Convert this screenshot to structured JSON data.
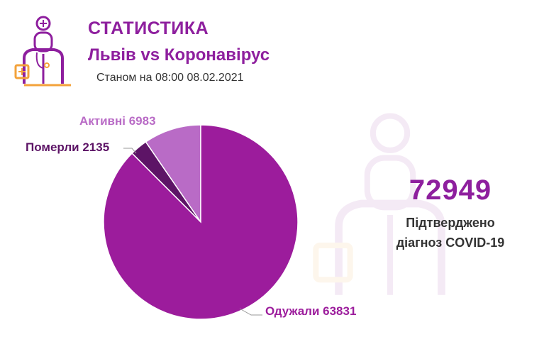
{
  "header": {
    "title": "СТАТИСТИКА",
    "subtitle": "Львів vs Коронавірус",
    "as_of": "Станом на 08:00 08.02.2021"
  },
  "logo_icon": "doctor-icon",
  "summary": {
    "total": "72949",
    "caption_line1": "Підтверджено",
    "caption_line2": "діагноз COVID-19"
  },
  "colors": {
    "brand": "#8e1f9e",
    "recovered": "#9c1c9c",
    "died": "#5d1466",
    "active": "#b96bc6",
    "accent_orange": "#f3a23a"
  },
  "chart_data": {
    "type": "pie",
    "title": "",
    "slices": [
      {
        "label": "Активні 6983",
        "value": 6983
      },
      {
        "label": "Померли 2135",
        "value": 2135
      },
      {
        "label": "Одужали 63831",
        "value": 63831
      }
    ]
  }
}
